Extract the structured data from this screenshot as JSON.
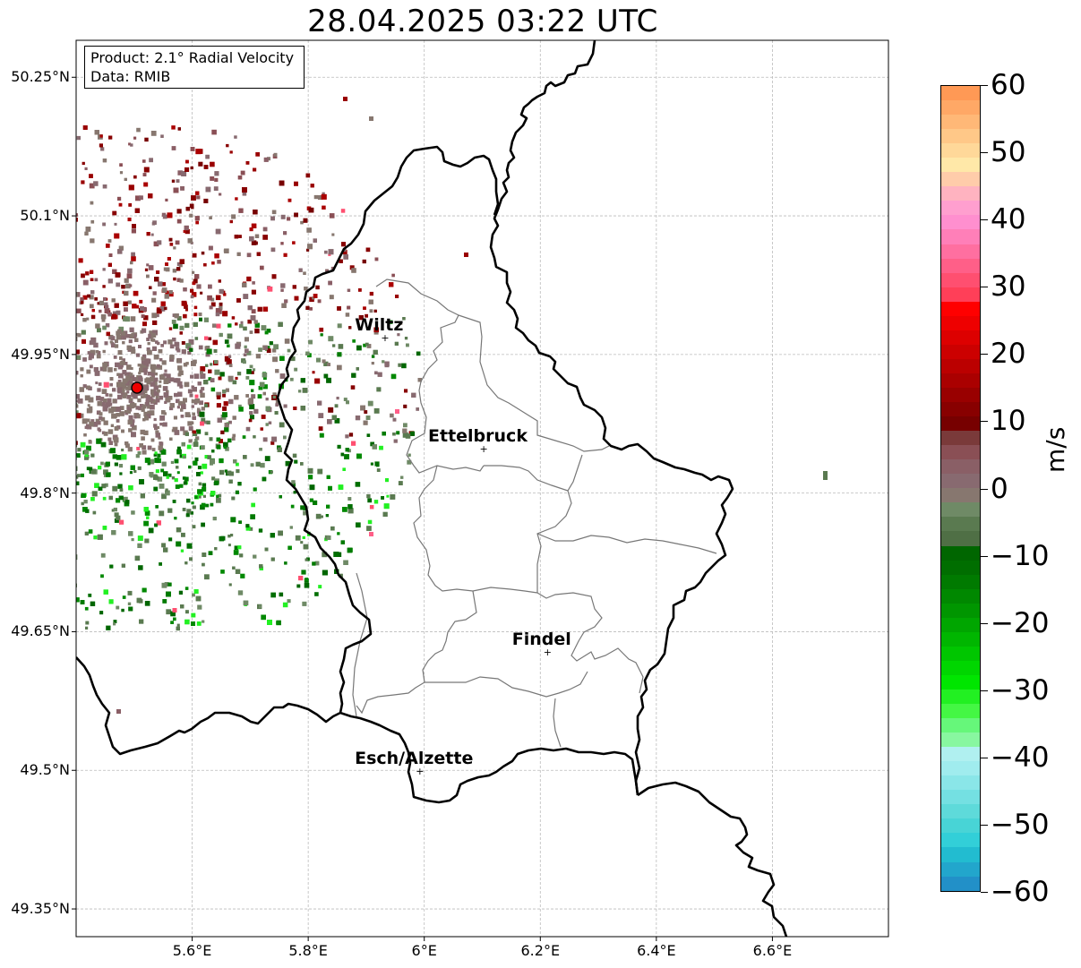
{
  "title": "28.04.2025 03:22 UTC",
  "info_box": {
    "product": "Product: 2.1° Radial Velocity",
    "data": "Data: RMIB"
  },
  "map": {
    "lon_range": [
      5.4,
      6.8
    ],
    "lat_range": [
      49.32,
      50.29
    ],
    "radar_site": {
      "lon": 5.505,
      "lat": 49.914
    },
    "grid": true,
    "lat_ticks": [
      {
        "value": 50.25,
        "label": "50.25°N"
      },
      {
        "value": 50.1,
        "label": "50.1°N"
      },
      {
        "value": 49.95,
        "label": "49.95°N"
      },
      {
        "value": 49.8,
        "label": "49.8°N"
      },
      {
        "value": 49.65,
        "label": "49.65°N"
      },
      {
        "value": 49.5,
        "label": "49.5°N"
      },
      {
        "value": 49.35,
        "label": "49.35°N"
      }
    ],
    "lon_ticks": [
      {
        "value": 5.6,
        "label": "5.6°E"
      },
      {
        "value": 5.8,
        "label": "5.8°E"
      },
      {
        "value": 6.0,
        "label": "6°E"
      },
      {
        "value": 6.2,
        "label": "6.2°E"
      },
      {
        "value": 6.4,
        "label": "6.4°E"
      },
      {
        "value": 6.6,
        "label": "6.6°E"
      }
    ],
    "cities": [
      {
        "name": "Wiltz",
        "lon": 5.93,
        "lat": 49.967
      },
      {
        "name": "Ettelbruck",
        "lon": 6.1,
        "lat": 49.847
      },
      {
        "name": "Findel",
        "lon": 6.21,
        "lat": 49.627
      },
      {
        "name": "Esch/Alzette",
        "lon": 5.99,
        "lat": 49.498
      }
    ]
  },
  "colorbar": {
    "label": "m/s",
    "min": -60,
    "max": 60,
    "ticks": [
      "60",
      "50",
      "40",
      "30",
      "20",
      "10",
      "0",
      "−10",
      "−20",
      "−30",
      "−40",
      "−50",
      "−60"
    ],
    "colors": [
      "#ff9955",
      "#ffa866",
      "#ffb877",
      "#ffc888",
      "#ffd899",
      "#ffe8a8",
      "#ffccaa",
      "#ffb3c0",
      "#ff9fcf",
      "#ff8fcf",
      "#ff7fb8",
      "#ff6fa0",
      "#ff5f88",
      "#ff4f70",
      "#ff3f58",
      "#ff0000",
      "#ee0000",
      "#dd0000",
      "#cc0000",
      "#bb0000",
      "#aa0000",
      "#990000",
      "#880000",
      "#770000",
      "#7a3a3a",
      "#8a4f55",
      "#8a5f66",
      "#886a70",
      "#87776f",
      "#6f8a66",
      "#5a7a50",
      "#4f6f45",
      "#006600",
      "#006e00",
      "#007a00",
      "#008800",
      "#009600",
      "#00a600",
      "#00b600",
      "#00c600",
      "#00d600",
      "#00e600",
      "#22f022",
      "#44f744",
      "#66f77a",
      "#88f7a0",
      "#b0f0f0",
      "#a0ecee",
      "#8ae6e8",
      "#74e0e2",
      "#5edada",
      "#48d4d6",
      "#32cfd8",
      "#22bcd0",
      "#22a6cc",
      "#2290c8"
    ]
  }
}
